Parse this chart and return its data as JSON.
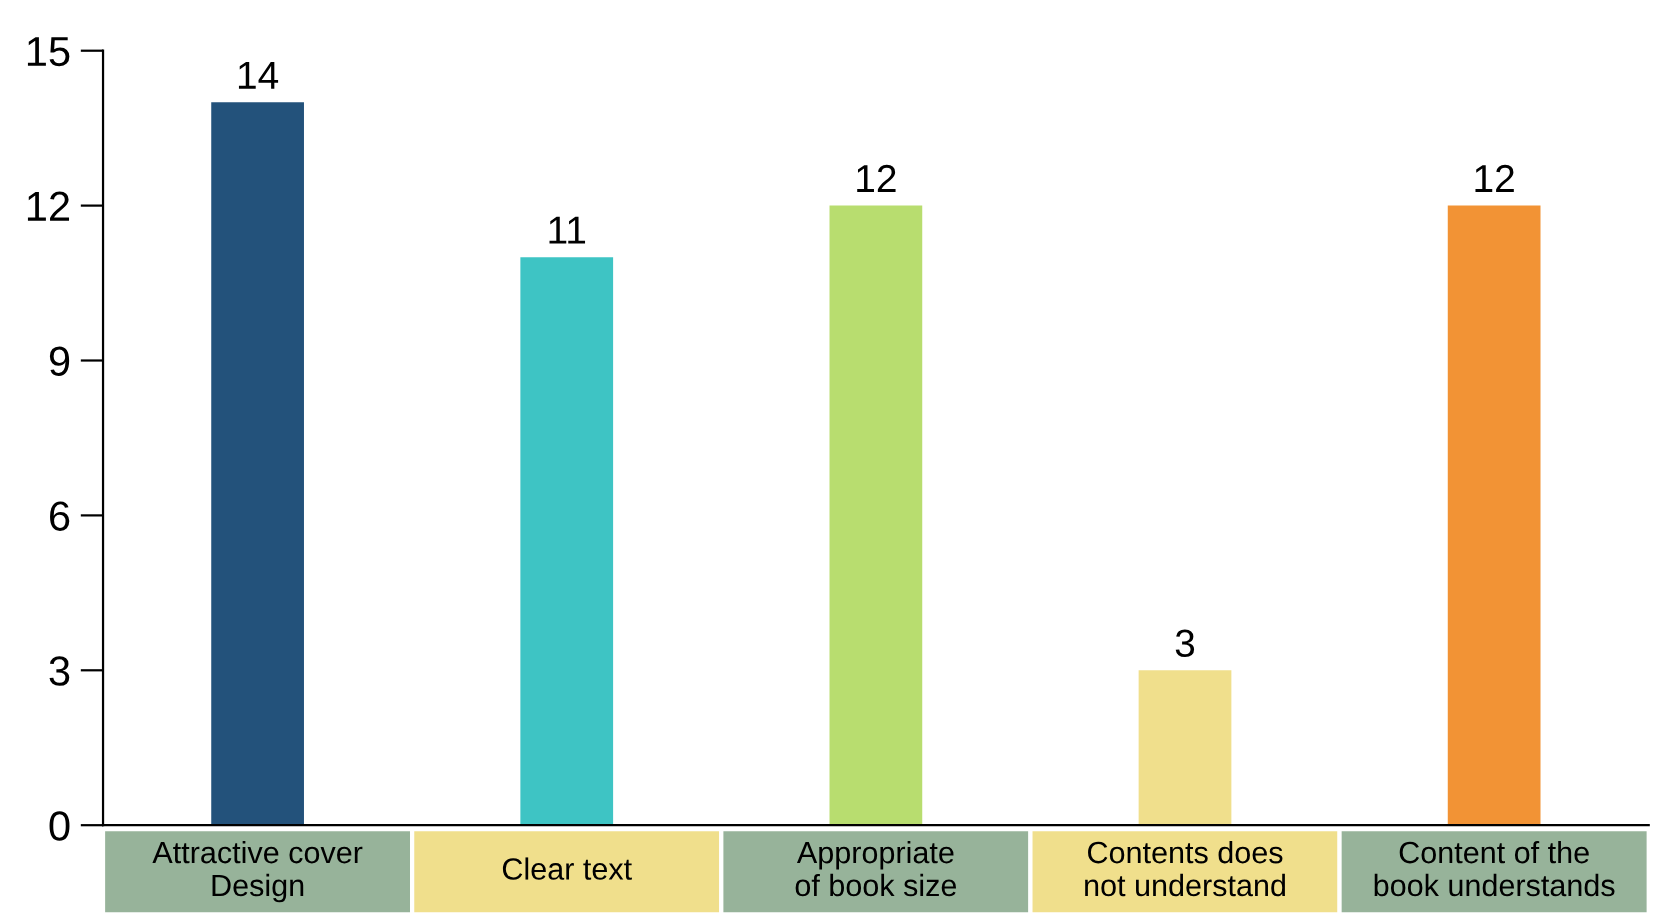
{
  "chart_data": {
    "type": "bar",
    "categories": [
      "Attractive cover\nDesign",
      "Clear text",
      "Appropriate\nof book size",
      "Contents does\nnot understand",
      "Content of the\nbook understands"
    ],
    "values": [
      14,
      11,
      12,
      3,
      12
    ],
    "colors": [
      "#23527b",
      "#3ec4c4",
      "#b8dd6f",
      "#f0df8c",
      "#f29335"
    ],
    "ylim": [
      0,
      15
    ],
    "yticks": [
      0,
      3,
      6,
      9,
      12,
      15
    ],
    "data_labels": true,
    "grid": false,
    "legend": false
  }
}
